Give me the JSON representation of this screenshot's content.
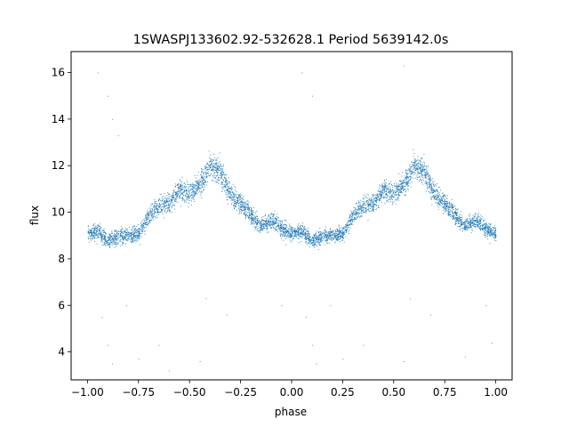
{
  "chart_data": {
    "type": "scatter",
    "title": "1SWASPJ133602.92-532628.1 Period 5639142.0s",
    "xlabel": "phase",
    "ylabel": "flux",
    "xlim": [
      -1.08,
      1.08
    ],
    "ylim": [
      2.8,
      16.9
    ],
    "xticks": [
      -1.0,
      -0.75,
      -0.5,
      -0.25,
      0.0,
      0.25,
      0.5,
      0.75,
      1.0
    ],
    "xtick_labels": [
      "−1.00",
      "−0.75",
      "−0.50",
      "−0.25",
      "0.00",
      "0.25",
      "0.50",
      "0.75",
      "1.00"
    ],
    "yticks": [
      4,
      6,
      8,
      10,
      12,
      14,
      16
    ],
    "ytick_labels": [
      "4",
      "6",
      "8",
      "10",
      "12",
      "14",
      "16"
    ],
    "grid": false,
    "legend": "none",
    "point_color": "#1f77b4",
    "profile": {
      "description_units": "phase vs median flux",
      "phase": [
        0.0,
        0.05,
        0.1,
        0.15,
        0.2,
        0.25,
        0.3,
        0.35,
        0.4,
        0.45,
        0.5,
        0.55,
        0.6,
        0.65,
        0.7,
        0.75,
        0.8,
        0.85,
        0.9,
        0.95,
        1.0
      ],
      "flux": [
        9.1,
        9.2,
        8.8,
        9.0,
        9.0,
        9.1,
        9.9,
        10.3,
        10.4,
        11.0,
        10.8,
        11.2,
        12.0,
        11.7,
        10.8,
        10.4,
        9.9,
        9.4,
        9.7,
        9.3,
        9.1
      ]
    },
    "points": [
      {
        "phase": -0.95,
        "flux": 16.0
      },
      {
        "phase": -0.9,
        "flux": 15.0
      },
      {
        "phase": -0.88,
        "flux": 14.0
      },
      {
        "phase": -0.85,
        "flux": 13.3
      },
      {
        "phase": -0.93,
        "flux": 5.5
      },
      {
        "phase": -0.9,
        "flux": 4.3
      },
      {
        "phase": -0.88,
        "flux": 3.5
      },
      {
        "phase": -0.81,
        "flux": 6.0
      },
      {
        "phase": -0.75,
        "flux": 3.7
      },
      {
        "phase": -0.65,
        "flux": 4.3
      },
      {
        "phase": -0.6,
        "flux": 3.2
      },
      {
        "phase": -0.45,
        "flux": 3.6
      },
      {
        "phase": -0.42,
        "flux": 6.3
      },
      {
        "phase": -0.32,
        "flux": 5.6
      },
      {
        "phase": -0.05,
        "flux": 6.0
      },
      {
        "phase": 0.05,
        "flux": 16.0
      },
      {
        "phase": 0.1,
        "flux": 15.0
      },
      {
        "phase": 0.12,
        "flux": 3.5
      },
      {
        "phase": 0.1,
        "flux": 4.3
      },
      {
        "phase": 0.07,
        "flux": 5.5
      },
      {
        "phase": 0.19,
        "flux": 6.0
      },
      {
        "phase": 0.25,
        "flux": 3.7
      },
      {
        "phase": 0.35,
        "flux": 4.3
      },
      {
        "phase": 0.55,
        "flux": 16.3
      },
      {
        "phase": 0.55,
        "flux": 3.6
      },
      {
        "phase": 0.58,
        "flux": 6.3
      },
      {
        "phase": 0.68,
        "flux": 5.6
      },
      {
        "phase": 0.95,
        "flux": 6.0
      },
      {
        "phase": 0.98,
        "flux": 4.4
      },
      {
        "phase": 0.85,
        "flux": 3.8
      }
    ]
  }
}
